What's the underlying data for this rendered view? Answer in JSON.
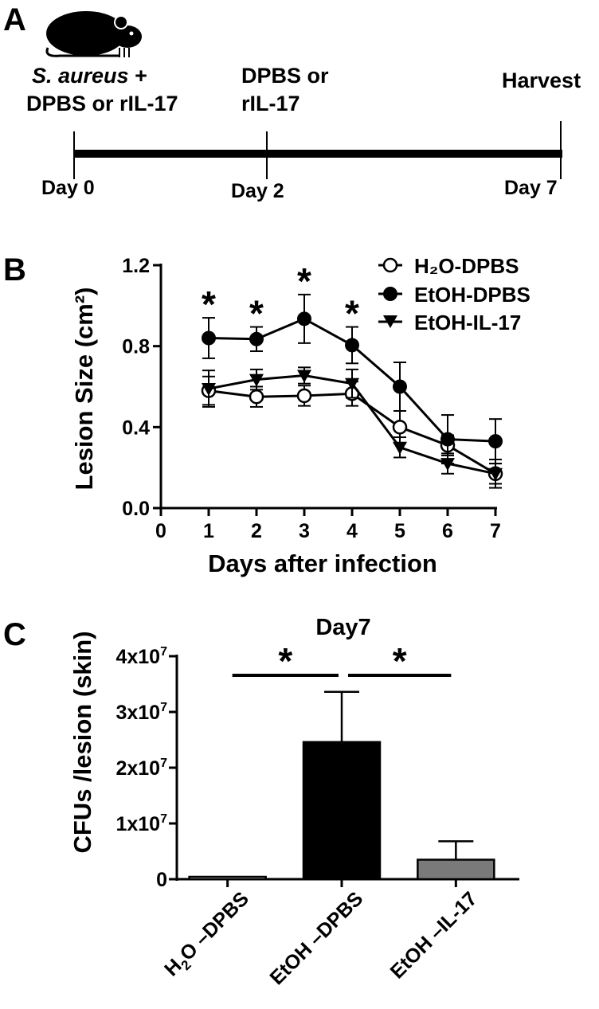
{
  "panels": {
    "a": {
      "letter": "A",
      "event_labels": [
        {
          "day": 0,
          "lines": [
            "S. aureus +",
            "DPBS or rIL-17"
          ],
          "italic_part": "S. aureus",
          "rest_first_line": " +"
        },
        {
          "day": 2,
          "lines": [
            "DPBS or",
            "rIL-17"
          ]
        },
        {
          "day": 7,
          "lines": [
            "Harvest"
          ]
        }
      ],
      "day_labels": [
        "Day 0",
        "Day 2",
        "Day 7"
      ],
      "icon": "mouse-icon"
    },
    "b": {
      "letter": "B"
    },
    "c": {
      "letter": "C"
    }
  },
  "chart_data": [
    {
      "type": "line",
      "panel": "B",
      "title": "",
      "xlabel": "Days after infection",
      "ylabel": "Lesion Size (cm²)",
      "xlim": [
        0,
        7
      ],
      "ylim": [
        0,
        1.2
      ],
      "x_ticks": [
        "0",
        "1",
        "2",
        "3",
        "4",
        "5",
        "6",
        "7"
      ],
      "y_ticks": [
        "0.0",
        "0.4",
        "0.8",
        "1.2"
      ],
      "grid": false,
      "legend_position": "top-right",
      "x": [
        1,
        2,
        3,
        4,
        5,
        6,
        7
      ],
      "series": [
        {
          "name": "H₂O-DPBS",
          "marker": "open-circle",
          "values": [
            0.58,
            0.55,
            0.555,
            0.565,
            0.4,
            0.31,
            0.17
          ],
          "errors": [
            0.07,
            0.05,
            0.05,
            0.06,
            0.08,
            0.05,
            0.07
          ],
          "color": "#000000"
        },
        {
          "name": "EtOH-DPBS",
          "marker": "filled-circle",
          "values": [
            0.84,
            0.835,
            0.935,
            0.805,
            0.6,
            0.34,
            0.33
          ],
          "errors": [
            0.1,
            0.06,
            0.12,
            0.09,
            0.12,
            0.12,
            0.11
          ],
          "color": "#000000"
        },
        {
          "name": "EtOH-IL-17",
          "marker": "filled-triangle-down",
          "values": [
            0.59,
            0.635,
            0.655,
            0.615,
            0.3,
            0.22,
            0.17
          ],
          "errors": [
            0.09,
            0.05,
            0.04,
            0.07,
            0.05,
            0.05,
            0.05
          ],
          "color": "#000000"
        }
      ],
      "significance_marks": [
        {
          "x": 1,
          "text": "*"
        },
        {
          "x": 2,
          "text": "*"
        },
        {
          "x": 3,
          "text": "*"
        },
        {
          "x": 4,
          "text": "*"
        }
      ]
    },
    {
      "type": "bar",
      "panel": "C",
      "title": "Day7",
      "xlabel": "",
      "ylabel": "CFUs /lesion (skin)",
      "ylim": [
        0,
        40000000
      ],
      "y_ticks": [
        {
          "value": 0,
          "base": "0",
          "exp": ""
        },
        {
          "value": 10000000,
          "base": "1x10",
          "exp": "7"
        },
        {
          "value": 20000000,
          "base": "2x10",
          "exp": "7"
        },
        {
          "value": 30000000,
          "base": "3x10",
          "exp": "7"
        },
        {
          "value": 40000000,
          "base": "4x10",
          "exp": "7"
        }
      ],
      "categories": [
        "H₂O –DPBS",
        "EtOH –DPBS",
        "EtOH –IL-17"
      ],
      "values": [
        200000,
        24600000,
        3500000
      ],
      "errors": [
        0,
        9000000,
        3300000
      ],
      "colors": [
        "#ffffff",
        "#000000",
        "#7a7a7a"
      ],
      "significance": [
        {
          "from": 0,
          "to": 1,
          "text": "*"
        },
        {
          "from": 1,
          "to": 2,
          "text": "*"
        }
      ]
    }
  ]
}
